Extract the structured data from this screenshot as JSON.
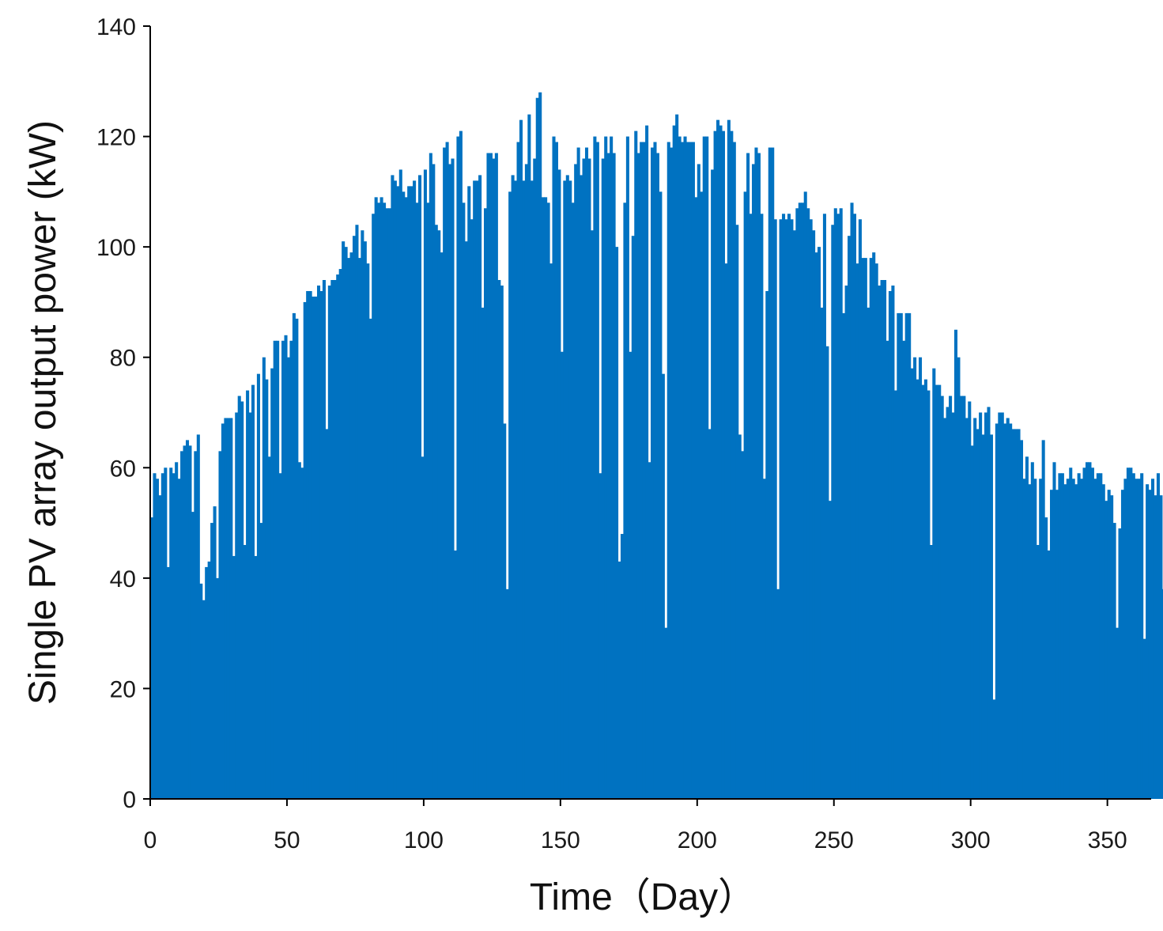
{
  "chart_data": {
    "type": "bar",
    "title": "",
    "xlabel": "Time（Day）",
    "ylabel": "Single PV array output power (kW)",
    "xlim": [
      0,
      366
    ],
    "ylim": [
      0,
      140
    ],
    "xticks": [
      0,
      50,
      100,
      150,
      200,
      250,
      300,
      350
    ],
    "yticks": [
      0,
      20,
      40,
      60,
      80,
      100,
      120,
      140
    ],
    "grid": false,
    "legend": "none",
    "color": "#0072C1",
    "series": [
      {
        "x_start": 1,
        "x_step": 1,
        "values": [
          51,
          59,
          58,
          55,
          59,
          60,
          42,
          60,
          59,
          61,
          58,
          63,
          64,
          65,
          64,
          52,
          63,
          66,
          39,
          36,
          42,
          43,
          50,
          53,
          40,
          63,
          68,
          69,
          69,
          69,
          44,
          70,
          73,
          72,
          46,
          74,
          70,
          75,
          44,
          77,
          50,
          80,
          76,
          62,
          78,
          83,
          83,
          59,
          83,
          84,
          80,
          83,
          88,
          87,
          61,
          60,
          90,
          92,
          92,
          91,
          91,
          93,
          92,
          94,
          67,
          93,
          94,
          94,
          95,
          96,
          101,
          100,
          98,
          99,
          102,
          104,
          98,
          103,
          101,
          97,
          87,
          106,
          109,
          108,
          109,
          108,
          107,
          107,
          113,
          112,
          111,
          114,
          110,
          109,
          111,
          111,
          112,
          108,
          113,
          62,
          114,
          108,
          117,
          115,
          104,
          103,
          99,
          118,
          119,
          115,
          116,
          45,
          120,
          121,
          108,
          101,
          111,
          105,
          112,
          112,
          113,
          89,
          107,
          117,
          117,
          116,
          117,
          94,
          93,
          68,
          38,
          110,
          113,
          112,
          119,
          123,
          112,
          115,
          124,
          112,
          116,
          127,
          128,
          109,
          109,
          108,
          97,
          120,
          119,
          114,
          81,
          112,
          113,
          112,
          108,
          115,
          118,
          113,
          116,
          118,
          116,
          103,
          120,
          119,
          59,
          116,
          120,
          117,
          120,
          117,
          100,
          43,
          48,
          108,
          120,
          81,
          102,
          121,
          117,
          119,
          119,
          122,
          61,
          118,
          119,
          117,
          110,
          77,
          31,
          119,
          118,
          122,
          124,
          120,
          119,
          120,
          119,
          119,
          119,
          109,
          115,
          110,
          120,
          120,
          67,
          114,
          121,
          123,
          122,
          121,
          97,
          123,
          121,
          119,
          104,
          66,
          63,
          110,
          117,
          106,
          115,
          118,
          117,
          106,
          58,
          92,
          118,
          118,
          105,
          38,
          105,
          106,
          105,
          106,
          105,
          103,
          107,
          108,
          108,
          110,
          107,
          105,
          103,
          99,
          100,
          89,
          106,
          82,
          54,
          104,
          107,
          106,
          107,
          88,
          93,
          102,
          108,
          106,
          97,
          105,
          98,
          98,
          89,
          98,
          99,
          97,
          93,
          94,
          94,
          83,
          92,
          93,
          74,
          88,
          88,
          83,
          88,
          88,
          78,
          80,
          76,
          80,
          75,
          76,
          74,
          46,
          78,
          75,
          75,
          73,
          69,
          71,
          73,
          70,
          85,
          80,
          73,
          73,
          69,
          72,
          64,
          69,
          67,
          70,
          66,
          70,
          71,
          66,
          18,
          68,
          70,
          70,
          68,
          69,
          68,
          67,
          67,
          67,
          65,
          58,
          62,
          57,
          61,
          58,
          46,
          58,
          65,
          51,
          45,
          56,
          61,
          56,
          59,
          59,
          57,
          58,
          60,
          58,
          57,
          59,
          58,
          60,
          61,
          61,
          60,
          58,
          59,
          59,
          57,
          54,
          56,
          55,
          50,
          31,
          49,
          56,
          58,
          60,
          60,
          59,
          58,
          58,
          59,
          29,
          57,
          56,
          58,
          55,
          59,
          55,
          38,
          58,
          59,
          60
        ]
      }
    ]
  }
}
